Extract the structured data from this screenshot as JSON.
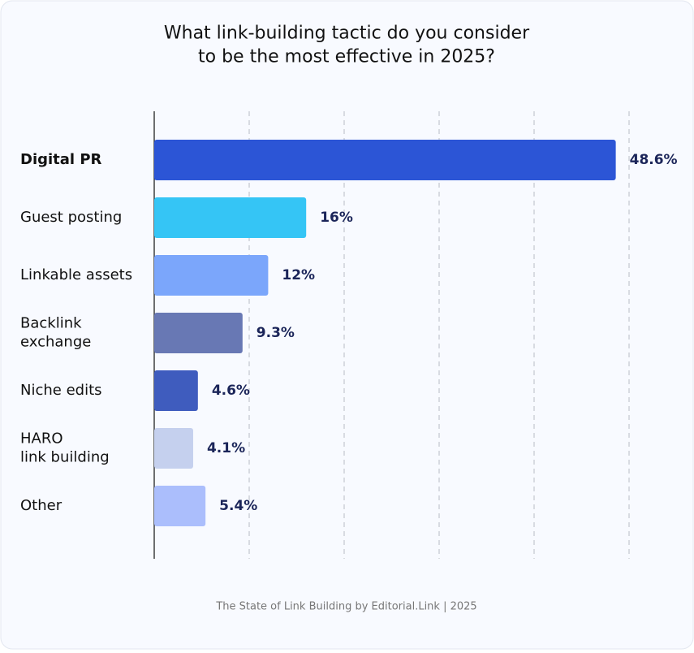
{
  "chart_data": {
    "type": "bar",
    "orientation": "horizontal",
    "title": "What link-building tactic do you consider\nto be the most effective in 2025?",
    "categories": [
      "Digital PR",
      "Guest posting",
      "Linkable assets",
      "Backlink\nexchange",
      "Niche edits",
      "HARO\nlink building",
      "Other"
    ],
    "values": [
      48.6,
      16,
      12,
      9.3,
      4.6,
      4.1,
      5.4
    ],
    "value_labels": [
      "48.6%",
      "16%",
      "12%",
      "9.3%",
      "4.6%",
      "4.1%",
      "5.4%"
    ],
    "colors": [
      "#2c55d6",
      "#35c5f5",
      "#7ba6fb",
      "#6878b4",
      "#3f5cbe",
      "#c5d0ee",
      "#abbefc"
    ],
    "xlim": [
      0,
      50
    ],
    "xticks": [
      10,
      20,
      30,
      40,
      50
    ],
    "grid": true,
    "source": "The State of Link Building by Editorial.Link | 2025"
  }
}
